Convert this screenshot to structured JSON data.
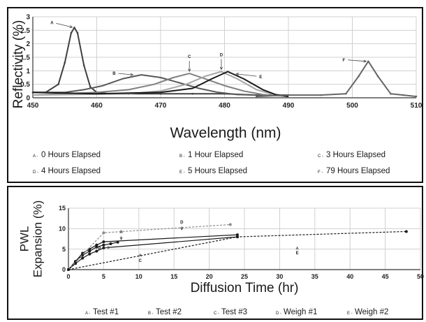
{
  "chart_data": [
    {
      "type": "line",
      "xlabel": "Wavelength (nm)",
      "ylabel": "Reflectivity (%)",
      "xlim": [
        450,
        510
      ],
      "ylim": [
        0,
        3
      ],
      "xticks": [
        450,
        460,
        470,
        480,
        490,
        500,
        510
      ],
      "yticks": [
        0,
        0.5,
        1,
        1.5,
        2,
        2.5,
        3
      ],
      "grid": true,
      "legend_position": "bottom",
      "series": [
        {
          "key": "A",
          "name": "0 Hours Elapsed",
          "color": "#404040",
          "markers": true,
          "x": [
            450,
            452,
            454,
            455,
            456,
            456.5,
            457,
            458,
            459,
            460,
            462,
            465,
            470,
            475,
            480,
            485,
            490
          ],
          "y": [
            0.2,
            0.2,
            0.5,
            1.3,
            2.4,
            2.6,
            2.4,
            1.2,
            0.4,
            0.2,
            0.15,
            0.15,
            0.15,
            0.15,
            0.15,
            0.1,
            0.1
          ]
        },
        {
          "key": "B",
          "name": "1 Hour Elapsed",
          "color": "#595959",
          "markers": false,
          "x": [
            450,
            455,
            458,
            461,
            464,
            467,
            470,
            473,
            476,
            479,
            482,
            485,
            490
          ],
          "y": [
            0.2,
            0.2,
            0.3,
            0.45,
            0.7,
            0.85,
            0.75,
            0.55,
            0.35,
            0.2,
            0.12,
            0.1,
            0.1
          ]
        },
        {
          "key": "C",
          "name": "3 Hours Elapsed",
          "color": "#808080",
          "markers": false,
          "x": [
            450,
            460,
            465,
            469,
            472,
            474.5,
            477,
            480,
            483,
            486,
            490
          ],
          "y": [
            0.1,
            0.2,
            0.3,
            0.5,
            0.75,
            0.9,
            0.7,
            0.45,
            0.25,
            0.12,
            0.05
          ]
        },
        {
          "key": "D",
          "name": "4 Hours Elapsed",
          "color": "#a6a6a6",
          "markers": false,
          "x": [
            450,
            465,
            470,
            474,
            477,
            479.5,
            482,
            485,
            488,
            490
          ],
          "y": [
            0.1,
            0.15,
            0.25,
            0.5,
            0.8,
            0.97,
            0.7,
            0.3,
            0.1,
            0.05
          ]
        },
        {
          "key": "E",
          "name": "5 Hours Elapsed",
          "color": "#1a1a1a",
          "markers": false,
          "x": [
            450,
            460,
            470,
            475,
            478,
            480.5,
            483,
            486,
            488,
            490
          ],
          "y": [
            0.2,
            0.15,
            0.2,
            0.35,
            0.7,
            0.97,
            0.7,
            0.3,
            0.12,
            0.05
          ]
        },
        {
          "key": "F",
          "name": "79 Hours Elapsed",
          "color": "#666666",
          "markers": true,
          "x": [
            485,
            490,
            495,
            499,
            501,
            502.5,
            504,
            506,
            508,
            510
          ],
          "y": [
            0.05,
            0.1,
            0.1,
            0.15,
            0.8,
            1.35,
            0.8,
            0.15,
            0.1,
            0.05
          ]
        }
      ],
      "annotations": [
        {
          "key": "A",
          "x": 456.5,
          "y": 2.6
        },
        {
          "key": "B",
          "x": 466,
          "y": 0.85
        },
        {
          "key": "C",
          "x": 474.5,
          "y": 0.9
        },
        {
          "key": "D",
          "x": 479.5,
          "y": 0.97
        },
        {
          "key": "E",
          "x": 481.5,
          "y": 0.9
        },
        {
          "key": "F",
          "x": 502.5,
          "y": 1.35
        }
      ]
    },
    {
      "type": "line",
      "xlabel": "Diffusion Time (hr)",
      "ylabel": "PWL\nExpansion (%)",
      "xlim": [
        0,
        50
      ],
      "ylim": [
        0,
        15
      ],
      "xticks": [
        0,
        5,
        10,
        15,
        20,
        25,
        30,
        35,
        40,
        45,
        50
      ],
      "yticks": [
        0,
        5,
        10,
        15
      ],
      "grid": true,
      "legend_position": "bottom",
      "series": [
        {
          "key": "A",
          "name": "Test #1",
          "color": "#1a1a1a",
          "dash": "",
          "x": [
            0,
            1,
            2,
            3,
            4,
            5,
            24
          ],
          "y": [
            0,
            2,
            4,
            5,
            6,
            6.8,
            8.5
          ]
        },
        {
          "key": "B",
          "name": "Test #2",
          "color": "#1a1a1a",
          "dash": "",
          "x": [
            0,
            1,
            2,
            3,
            4,
            5,
            6,
            7
          ],
          "y": [
            0,
            2,
            3.5,
            4.5,
            5.5,
            6,
            6.3,
            6.7
          ]
        },
        {
          "key": "C",
          "name": "Test #3",
          "color": "#1a1a1a",
          "dash": "",
          "x": [
            0,
            1,
            2,
            3,
            4,
            5,
            24
          ],
          "y": [
            0,
            1.5,
            2.8,
            3.8,
            4.5,
            5.3,
            8.0
          ]
        },
        {
          "key": "D",
          "name": "Weigh #1",
          "color": "#8c8c8c",
          "dash": "3,2",
          "x": [
            0,
            5,
            23
          ],
          "y": [
            0,
            9.0,
            11.0
          ]
        },
        {
          "key": "E",
          "name": "Weigh #2",
          "color": "#1a1a1a",
          "dash": "3,2",
          "x": [
            0,
            24,
            48
          ],
          "y": [
            0,
            8.0,
            9.3
          ]
        }
      ],
      "annotations": [
        {
          "key": "A",
          "x": 7.5,
          "y": 6.8
        },
        {
          "key": "B",
          "x": 6.2,
          "y": 5.5
        },
        {
          "key": "C",
          "x": 10.2,
          "y": 4.3
        },
        {
          "key": "D",
          "x": 16.1,
          "y": 9.2
        },
        {
          "key": "E",
          "x": 32.5,
          "y": 6.0
        }
      ]
    }
  ]
}
